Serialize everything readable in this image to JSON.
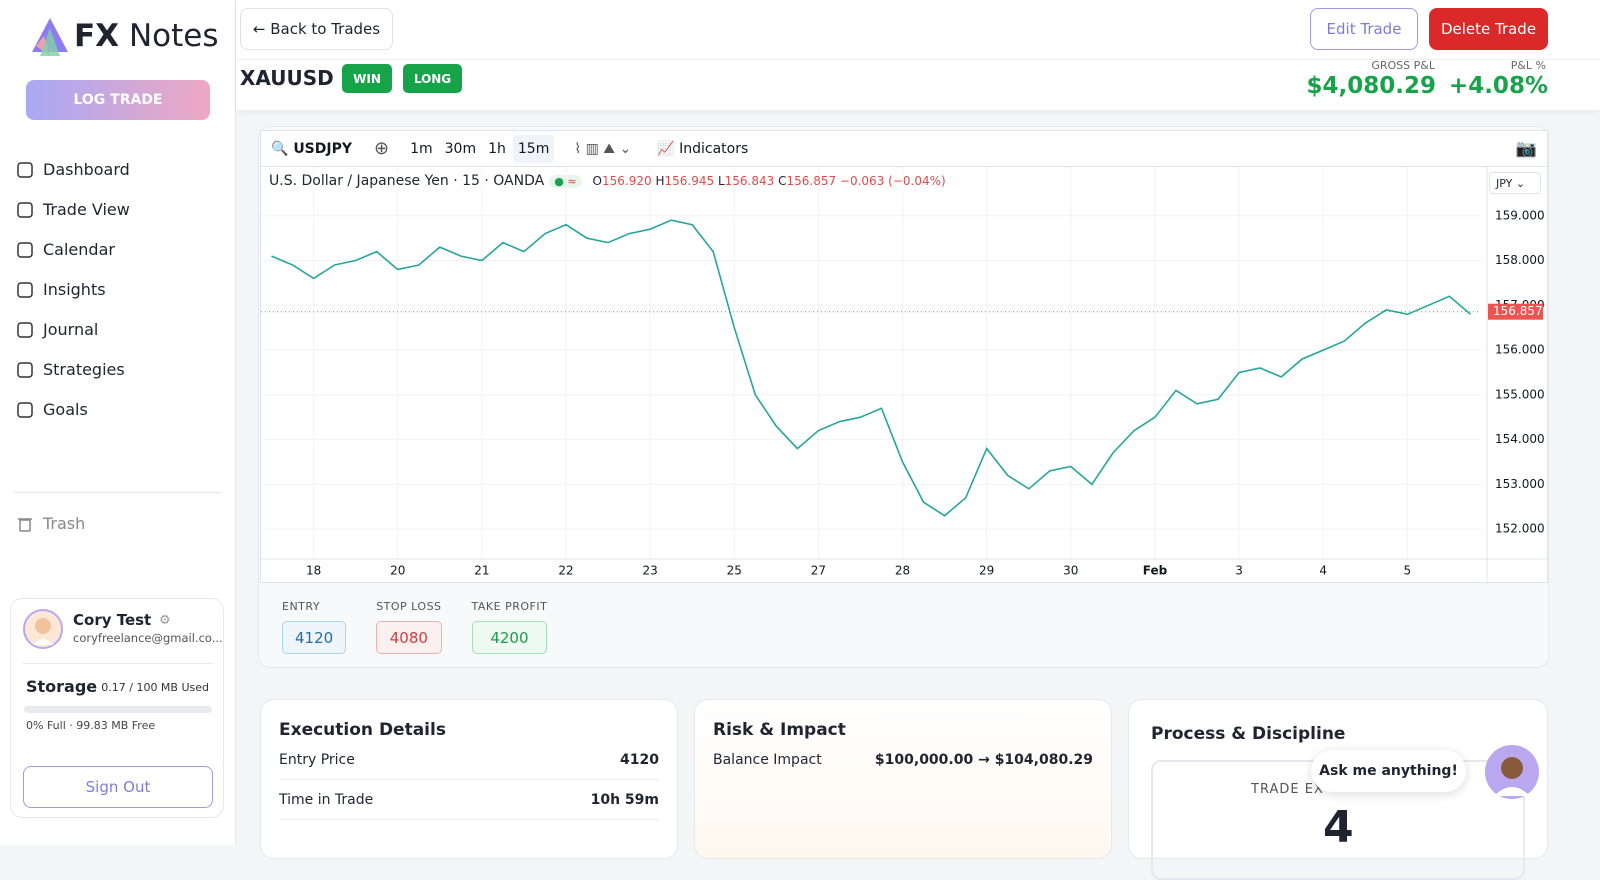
{
  "sidebar": {
    "brand_bold": "FX",
    "brand": "Notes",
    "log_trade": "LOG TRADE",
    "nav": [
      "Dashboard",
      "Trade View",
      "Calendar",
      "Insights",
      "Journal",
      "Strategies",
      "Goals"
    ],
    "trash": "Trash",
    "user": {
      "name": "Cory Test",
      "email": "coryfreelance@gmail.co...",
      "storage_title": "Storage",
      "storage_used": "0.17 / 100 MB Used",
      "storage_free": "0% Full · 99.83 MB Free",
      "sign_out": "Sign Out"
    }
  },
  "header": {
    "back": "← Back to Trades",
    "edit": "Edit Trade",
    "delete": "Delete Trade",
    "symbol": "XAUUSD",
    "badges": [
      "WIN",
      "LONG"
    ],
    "gross_label": "GROSS P&L",
    "gross": "$4,080.29",
    "pct_label": "P&L %",
    "pct": "+4.08%"
  },
  "toolbar": {
    "symbol": "USDJPY",
    "intervals": [
      "1m",
      "30m",
      "1h",
      "15m"
    ],
    "indicators": "Indicators"
  },
  "legend": {
    "title": "U.S. Dollar / Japanese Yen · 15 · OANDA",
    "o_label": "O",
    "o": "156.920",
    "h_label": "H",
    "h": "156.945",
    "l_label": "L",
    "l": "156.843",
    "c_label": "C",
    "c": "156.857",
    "change": "−0.063 (−0.04%)",
    "currency": "JPY"
  },
  "chart_data": {
    "type": "line",
    "color": "#26a69a",
    "grid": true,
    "categories": [
      null,
      null,
      "18",
      null,
      null,
      null,
      "20",
      null,
      null,
      null,
      "21",
      null,
      null,
      null,
      "22",
      null,
      null,
      null,
      "23",
      null,
      null,
      null,
      "25",
      null,
      null,
      null,
      "27",
      null,
      null,
      null,
      "28",
      null,
      null,
      null,
      "29",
      null,
      null,
      null,
      "30",
      null,
      null,
      null,
      "Feb",
      null,
      null,
      null,
      "3",
      null,
      null,
      null,
      "4",
      null,
      null,
      null,
      "5",
      null,
      null,
      null
    ],
    "values": [
      158.1,
      157.9,
      157.6,
      157.9,
      158.0,
      158.2,
      157.8,
      157.9,
      158.3,
      158.1,
      158.0,
      158.4,
      158.2,
      158.6,
      158.8,
      158.5,
      158.4,
      158.6,
      158.7,
      158.9,
      158.8,
      158.2,
      156.5,
      155.0,
      154.3,
      153.8,
      154.2,
      154.4,
      154.5,
      154.7,
      153.5,
      152.6,
      152.3,
      152.7,
      153.8,
      153.2,
      152.9,
      153.3,
      153.4,
      153.0,
      153.7,
      154.2,
      154.5,
      155.1,
      154.8,
      154.9,
      155.5,
      155.6,
      155.4,
      155.8,
      156.0,
      156.2,
      156.6,
      156.9,
      156.8,
      157.0,
      157.2,
      156.8
    ],
    "ylim": [
      151.4,
      160.0
    ],
    "yticks": [
      {
        "value": 152,
        "label": "152.000"
      },
      {
        "value": 153,
        "label": "153.000"
      },
      {
        "value": 154,
        "label": "154.000"
      },
      {
        "value": 155,
        "label": "155.000"
      },
      {
        "value": 156,
        "label": "156.000"
      },
      {
        "value": 157,
        "label": "157.000"
      },
      {
        "value": 158,
        "label": "158.000"
      },
      {
        "value": 159,
        "label": "159.000"
      }
    ],
    "last_price": {
      "value": 156.857,
      "label": "156.857"
    }
  },
  "levels": [
    {
      "label": "ENTRY",
      "value": "4120"
    },
    {
      "label": "STOP LOSS",
      "value": "4080"
    },
    {
      "label": "TAKE PROFIT",
      "value": "4200"
    }
  ],
  "cards": {
    "execution": {
      "title": "Execution Details",
      "rows": [
        [
          "Entry Price",
          "4120"
        ],
        [
          "Time in Trade",
          "10h 59m"
        ]
      ]
    },
    "risk": {
      "title": "Risk & Impact",
      "rows": [
        [
          "Balance Impact",
          "$100,000.00 → $104,080.29"
        ]
      ]
    },
    "process": {
      "title": "Process & Discipline",
      "label": "TRADE EX",
      "value": "4"
    }
  },
  "chat": "Ask me anything!"
}
